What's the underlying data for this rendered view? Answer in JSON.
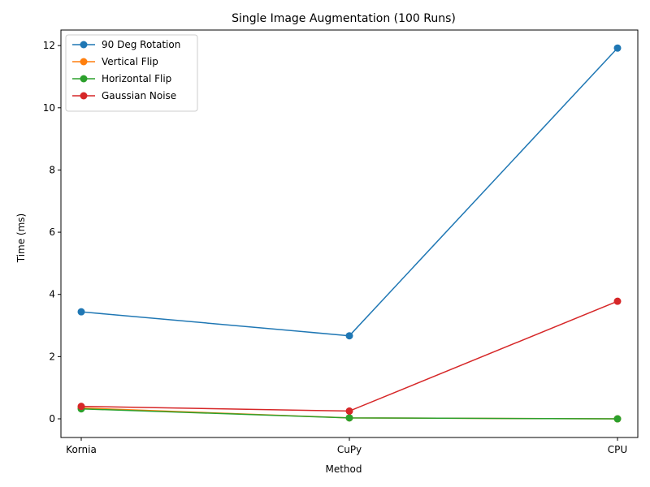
{
  "chart_data": {
    "type": "line",
    "title": "Single Image Augmentation (100 Runs)",
    "xlabel": "Method",
    "ylabel": "Time (ms)",
    "categories": [
      "Kornia",
      "CuPy",
      "CPU"
    ],
    "ylim": [
      -0.6,
      12.5
    ],
    "yticks": [
      0,
      2,
      4,
      6,
      8,
      10,
      12
    ],
    "legend_position": "upper-left",
    "grid": false,
    "series": [
      {
        "name": "90 Deg Rotation",
        "values": [
          3.44,
          2.67,
          11.92
        ],
        "color": "#1f77b4"
      },
      {
        "name": "Vertical Flip",
        "values": [
          0.35,
          0.03,
          0.0
        ],
        "color": "#ff7f0e"
      },
      {
        "name": "Horizontal Flip",
        "values": [
          0.32,
          0.03,
          0.0
        ],
        "color": "#2ca02c"
      },
      {
        "name": "Gaussian Noise",
        "values": [
          0.4,
          0.25,
          3.78
        ],
        "color": "#d62728"
      }
    ]
  }
}
